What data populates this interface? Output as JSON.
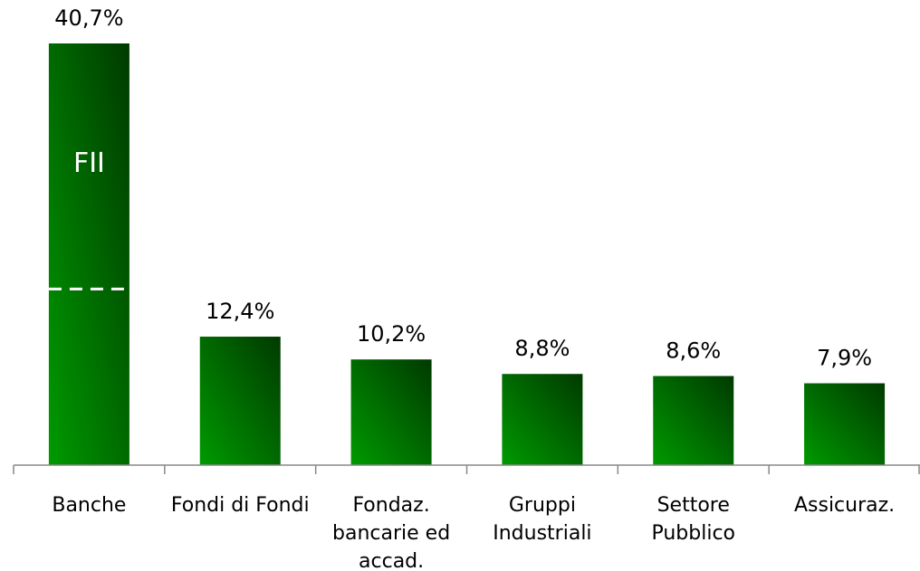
{
  "chart_data": {
    "type": "bar",
    "categories": [
      "Banche",
      "Fondi di Fondi",
      "Fondaz. bancarie ed accad.",
      "Gruppi Industriali",
      "Settore Pubblico",
      "Assicuraz."
    ],
    "values": [
      40.7,
      12.4,
      10.2,
      8.8,
      8.6,
      7.9
    ],
    "value_labels": [
      "40,7%",
      "12,4%",
      "10,2%",
      "8,8%",
      "8,6%",
      "7,9%"
    ],
    "colors": [
      "#009a00",
      "#003a00"
    ],
    "annotation": "FII",
    "dashed_line_value": 17
  }
}
